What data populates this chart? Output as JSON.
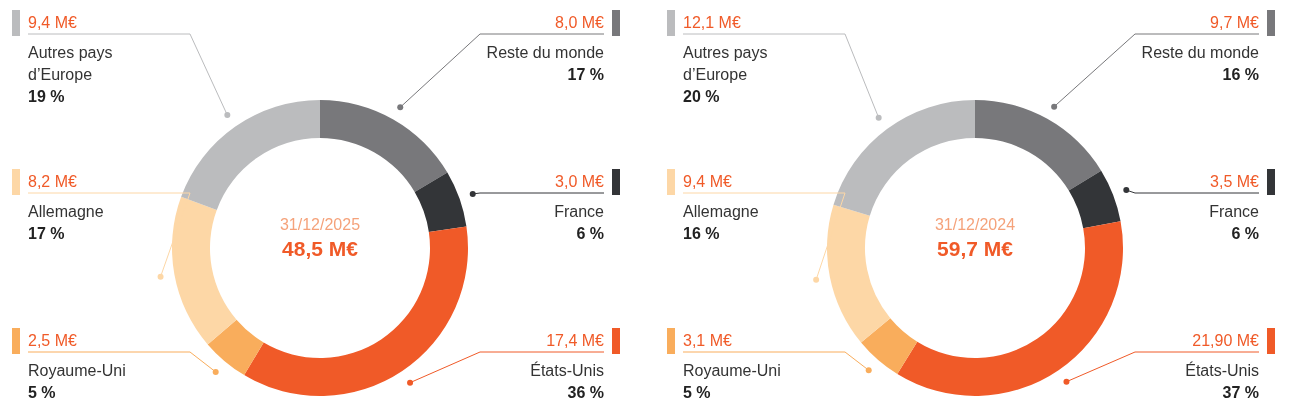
{
  "chart_data": [
    {
      "type": "donut",
      "title": "48,5 M€",
      "subtitle": "31/12/2025",
      "categories": [
        "Reste du monde",
        "France",
        "États-Unis",
        "Royaume-Uni",
        "Allemagne",
        "Autres pays d’Europe"
      ],
      "values": [
        8.0,
        3.0,
        17.4,
        2.5,
        8.2,
        9.4
      ],
      "value_labels": [
        "8,0 M€",
        "3,0 M€",
        "17,4 M€",
        "2,5 M€",
        "8,2 M€",
        "9,4 M€"
      ],
      "colors": [
        "#78787b",
        "#333538",
        "#f05a28",
        "#f9ad5c",
        "#fdd7a6",
        "#bbbcbe"
      ],
      "annotations": [
        {
          "text": "17 %",
          "x": "Reste du monde"
        },
        {
          "text": "6 %",
          "x": "France"
        },
        {
          "text": "36 %",
          "x": "États-Unis"
        },
        {
          "text": "5 %",
          "x": "Royaume-Uni"
        },
        {
          "text": "17 %",
          "x": "Allemagne"
        },
        {
          "text": "19 %",
          "x": "Autres pays d’Europe"
        }
      ],
      "legend": "left right"
    },
    {
      "type": "donut",
      "title": "59,7 M€",
      "subtitle": "31/12/2024",
      "categories": [
        "Reste du monde",
        "France",
        "États-Unis",
        "Royaume-Uni",
        "Allemagne",
        "Autres pays d’Europe"
      ],
      "values": [
        9.7,
        3.5,
        21.9,
        3.1,
        9.4,
        12.1
      ],
      "value_labels": [
        "9,7 M€",
        "3,5 M€",
        "21,90 M€",
        "3,1 M€",
        "9,4 M€",
        "12,1 M€"
      ],
      "colors": [
        "#78787b",
        "#333538",
        "#f05a28",
        "#f9ad5c",
        "#fdd7a6",
        "#bbbcbe"
      ],
      "annotations": [
        {
          "text": "16 %",
          "x": "Reste du monde"
        },
        {
          "text": "6 %",
          "x": "France"
        },
        {
          "text": "37 %",
          "x": "États-Unis"
        },
        {
          "text": "5 %",
          "x": "Royaume-Uni"
        },
        {
          "text": "16 %",
          "x": "Allemagne"
        },
        {
          "text": "20 %",
          "x": "Autres pays d’Europe"
        }
      ],
      "legend": "left right"
    }
  ]
}
